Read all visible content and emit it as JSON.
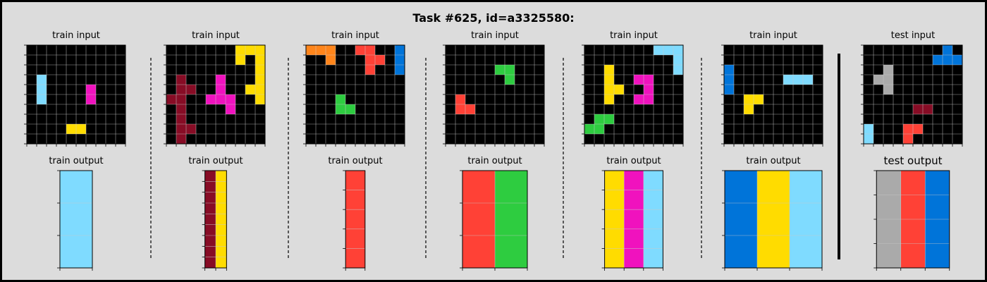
{
  "title": "Task #625, id=a3325580:",
  "colors": {
    "0": "#000000",
    "1": "#0074D9",
    "2": "#FF4136",
    "3": "#2ECC40",
    "4": "#FFDC00",
    "5": "#AAAAAA",
    "6": "#F012BE",
    "7": "#FF851B",
    "8": "#7FDBFF",
    "9": "#870C25"
  },
  "pairs": [
    {
      "input_label": "train input",
      "output_label": "train output",
      "input": [
        [
          0,
          0,
          0,
          0,
          0,
          0,
          0,
          0,
          0,
          0
        ],
        [
          0,
          0,
          0,
          0,
          0,
          0,
          0,
          0,
          0,
          0
        ],
        [
          0,
          0,
          0,
          0,
          0,
          0,
          0,
          0,
          0,
          0
        ],
        [
          0,
          8,
          0,
          0,
          0,
          0,
          0,
          0,
          0,
          0
        ],
        [
          0,
          8,
          0,
          0,
          0,
          0,
          6,
          0,
          0,
          0
        ],
        [
          0,
          8,
          0,
          0,
          0,
          0,
          6,
          0,
          0,
          0
        ],
        [
          0,
          0,
          0,
          0,
          0,
          0,
          0,
          0,
          0,
          0
        ],
        [
          0,
          0,
          0,
          0,
          0,
          0,
          0,
          0,
          0,
          0
        ],
        [
          0,
          0,
          0,
          0,
          4,
          4,
          0,
          0,
          0,
          0
        ],
        [
          0,
          0,
          0,
          0,
          0,
          0,
          0,
          0,
          0,
          0
        ]
      ],
      "output": [
        [
          8
        ],
        [
          8
        ],
        [
          8
        ]
      ]
    },
    {
      "input_label": "train input",
      "output_label": "train output",
      "input": [
        [
          0,
          0,
          0,
          0,
          0,
          0,
          0,
          4,
          4,
          4
        ],
        [
          0,
          0,
          0,
          0,
          0,
          0,
          0,
          4,
          0,
          4
        ],
        [
          0,
          0,
          0,
          0,
          0,
          0,
          0,
          0,
          0,
          4
        ],
        [
          0,
          9,
          0,
          0,
          0,
          6,
          0,
          0,
          0,
          4
        ],
        [
          0,
          9,
          9,
          0,
          0,
          6,
          0,
          0,
          4,
          4
        ],
        [
          9,
          9,
          0,
          0,
          6,
          6,
          6,
          0,
          0,
          4
        ],
        [
          0,
          9,
          0,
          0,
          0,
          0,
          6,
          0,
          0,
          0
        ],
        [
          0,
          9,
          0,
          0,
          0,
          0,
          0,
          0,
          0,
          0
        ],
        [
          0,
          9,
          9,
          0,
          0,
          0,
          0,
          0,
          0,
          0
        ],
        [
          0,
          9,
          0,
          0,
          0,
          0,
          0,
          0,
          0,
          0
        ]
      ],
      "output": [
        [
          9,
          4
        ],
        [
          9,
          4
        ],
        [
          9,
          4
        ],
        [
          9,
          4
        ],
        [
          9,
          4
        ],
        [
          9,
          4
        ],
        [
          9,
          4
        ],
        [
          9,
          4
        ],
        [
          9,
          4
        ]
      ]
    },
    {
      "input_label": "train input",
      "output_label": "train output",
      "input": [
        [
          7,
          7,
          7,
          0,
          0,
          2,
          2,
          0,
          0,
          1
        ],
        [
          0,
          0,
          7,
          0,
          0,
          0,
          2,
          2,
          0,
          1
        ],
        [
          0,
          0,
          0,
          0,
          0,
          0,
          2,
          0,
          0,
          1
        ],
        [
          0,
          0,
          0,
          0,
          0,
          0,
          0,
          0,
          0,
          0
        ],
        [
          0,
          0,
          0,
          0,
          0,
          0,
          0,
          0,
          0,
          0
        ],
        [
          0,
          0,
          0,
          3,
          0,
          0,
          0,
          0,
          0,
          0
        ],
        [
          0,
          0,
          0,
          3,
          3,
          0,
          0,
          0,
          0,
          0
        ],
        [
          0,
          0,
          0,
          0,
          0,
          0,
          0,
          0,
          0,
          0
        ],
        [
          0,
          0,
          0,
          0,
          0,
          0,
          0,
          0,
          0,
          0
        ],
        [
          0,
          0,
          0,
          0,
          0,
          0,
          0,
          0,
          0,
          0
        ]
      ],
      "output": [
        [
          2
        ],
        [
          2
        ],
        [
          2
        ],
        [
          2
        ],
        [
          2
        ]
      ]
    },
    {
      "input_label": "train input",
      "output_label": "train output",
      "input": [
        [
          0,
          0,
          0,
          0,
          0,
          0,
          0,
          0,
          0,
          0
        ],
        [
          0,
          0,
          0,
          0,
          0,
          0,
          0,
          0,
          0,
          0
        ],
        [
          0,
          0,
          0,
          0,
          0,
          3,
          3,
          0,
          0,
          0
        ],
        [
          0,
          0,
          0,
          0,
          0,
          0,
          3,
          0,
          0,
          0
        ],
        [
          0,
          0,
          0,
          0,
          0,
          0,
          0,
          0,
          0,
          0
        ],
        [
          0,
          2,
          0,
          0,
          0,
          0,
          0,
          0,
          0,
          0
        ],
        [
          0,
          2,
          2,
          0,
          0,
          0,
          0,
          0,
          0,
          0
        ],
        [
          0,
          0,
          0,
          0,
          0,
          0,
          0,
          0,
          0,
          0
        ],
        [
          0,
          0,
          0,
          0,
          0,
          0,
          0,
          0,
          0,
          0
        ],
        [
          0,
          0,
          0,
          0,
          0,
          0,
          0,
          0,
          0,
          0
        ]
      ],
      "output": [
        [
          2,
          3
        ],
        [
          2,
          3
        ],
        [
          2,
          3
        ]
      ]
    },
    {
      "input_label": "train input",
      "output_label": "train output",
      "input": [
        [
          0,
          0,
          0,
          0,
          0,
          0,
          0,
          8,
          8,
          8
        ],
        [
          0,
          0,
          0,
          0,
          0,
          0,
          0,
          0,
          0,
          8
        ],
        [
          0,
          0,
          4,
          0,
          0,
          0,
          0,
          0,
          0,
          8
        ],
        [
          0,
          0,
          4,
          0,
          0,
          6,
          6,
          0,
          0,
          0
        ],
        [
          0,
          0,
          4,
          4,
          0,
          0,
          6,
          0,
          0,
          0
        ],
        [
          0,
          0,
          4,
          0,
          0,
          6,
          6,
          0,
          0,
          0
        ],
        [
          0,
          0,
          0,
          0,
          0,
          0,
          0,
          0,
          0,
          0
        ],
        [
          0,
          3,
          3,
          0,
          0,
          0,
          0,
          0,
          0,
          0
        ],
        [
          3,
          3,
          0,
          0,
          0,
          0,
          0,
          0,
          0,
          0
        ],
        [
          0,
          0,
          0,
          0,
          0,
          0,
          0,
          0,
          0,
          0
        ]
      ],
      "output": [
        [
          4,
          6,
          8
        ],
        [
          4,
          6,
          8
        ],
        [
          4,
          6,
          8
        ],
        [
          4,
          6,
          8
        ],
        [
          4,
          6,
          8
        ]
      ]
    },
    {
      "input_label": "train input",
      "output_label": "train output",
      "input": [
        [
          0,
          0,
          0,
          0,
          0,
          0,
          0,
          0,
          0,
          0
        ],
        [
          0,
          0,
          0,
          0,
          0,
          0,
          0,
          0,
          0,
          0
        ],
        [
          1,
          0,
          0,
          0,
          0,
          0,
          0,
          0,
          0,
          0
        ],
        [
          1,
          0,
          0,
          0,
          0,
          0,
          8,
          8,
          8,
          0
        ],
        [
          1,
          0,
          0,
          0,
          0,
          0,
          0,
          0,
          0,
          0
        ],
        [
          0,
          0,
          4,
          4,
          0,
          0,
          0,
          0,
          0,
          0
        ],
        [
          0,
          0,
          4,
          0,
          0,
          0,
          0,
          0,
          0,
          0
        ],
        [
          0,
          0,
          0,
          0,
          0,
          0,
          0,
          0,
          0,
          0
        ],
        [
          0,
          0,
          0,
          0,
          0,
          0,
          0,
          0,
          0,
          0
        ],
        [
          0,
          0,
          0,
          0,
          0,
          0,
          0,
          0,
          0,
          0
        ]
      ],
      "output": [
        [
          1,
          4,
          8
        ],
        [
          1,
          4,
          8
        ],
        [
          1,
          4,
          8
        ]
      ]
    }
  ],
  "test": {
    "input_label": "test input",
    "output_label": "test output",
    "input": [
      [
        0,
        0,
        0,
        0,
        0,
        0,
        0,
        0,
        1,
        0
      ],
      [
        0,
        0,
        0,
        0,
        0,
        0,
        0,
        1,
        1,
        1
      ],
      [
        0,
        0,
        5,
        0,
        0,
        0,
        0,
        0,
        0,
        0
      ],
      [
        0,
        5,
        5,
        0,
        0,
        0,
        0,
        0,
        0,
        0
      ],
      [
        0,
        0,
        5,
        0,
        0,
        0,
        0,
        0,
        0,
        0
      ],
      [
        0,
        0,
        0,
        0,
        0,
        0,
        0,
        0,
        0,
        0
      ],
      [
        0,
        0,
        0,
        0,
        0,
        9,
        9,
        0,
        0,
        0
      ],
      [
        0,
        0,
        0,
        0,
        0,
        0,
        0,
        0,
        0,
        0
      ],
      [
        8,
        0,
        0,
        0,
        2,
        2,
        0,
        0,
        0,
        0
      ],
      [
        8,
        0,
        0,
        0,
        2,
        0,
        0,
        0,
        0,
        0
      ]
    ],
    "output": [
      [
        5,
        2,
        1
      ],
      [
        5,
        2,
        1
      ],
      [
        5,
        2,
        1
      ],
      [
        5,
        2,
        1
      ]
    ]
  }
}
